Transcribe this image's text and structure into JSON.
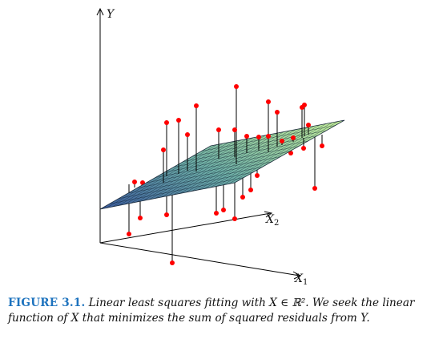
{
  "figure": {
    "axis_y_label": "Y",
    "axis_x2_label": "X",
    "axis_x2_sub": "2",
    "axis_x1_label": "X",
    "axis_x1_sub": "1"
  },
  "caption": {
    "label": "FIGURE 3.1.",
    "text": " Linear least squares fitting with X ∈ ℝ². We seek the linear function of X that minimizes the sum of squared residuals from Y."
  },
  "colors": {
    "points": "#ff0000",
    "plane_light": "#c9f29a",
    "plane_dark": "#3c5a9a",
    "mesh": "#0a1a2a"
  }
}
